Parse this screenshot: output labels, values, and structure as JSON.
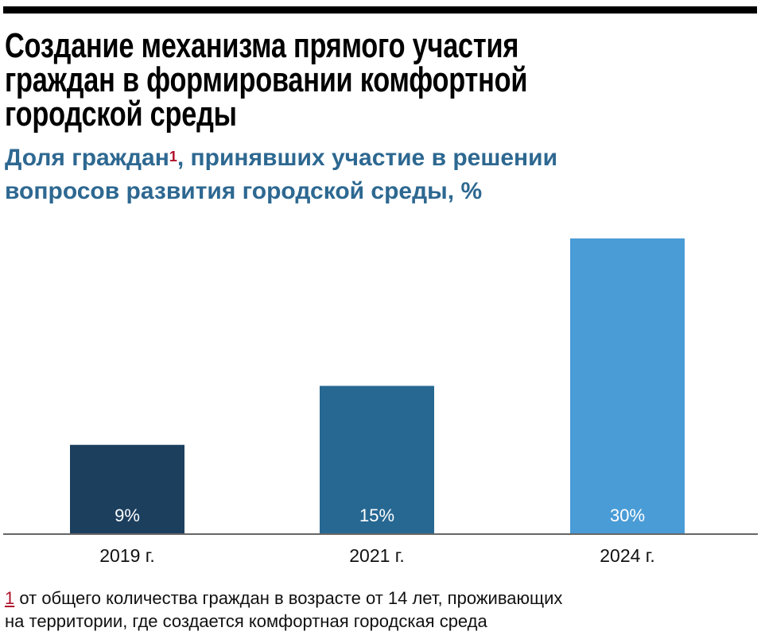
{
  "title_lines": [
    "Создание механизма прямого участия",
    "граждан в формировании комфортной",
    "городской среды"
  ],
  "subtitle": {
    "line1_before": "Доля граждан",
    "footnote_mark": "1",
    "line1_after": ", принявших участие в решении",
    "line2": "вопросов развития городской среды, %"
  },
  "footnote": {
    "mark": "1",
    "line1": "от общего количества граждан в возрасте от 14 лет, проживающих",
    "line2": "на территории, где создается комфортная городская среда"
  },
  "chart_data": {
    "type": "bar",
    "categories": [
      "2019 г.",
      "2021 г.",
      "2024 г."
    ],
    "values": [
      9,
      15,
      30
    ],
    "data_labels": [
      "9%",
      "15%",
      "30%"
    ],
    "colors": [
      "#1c3f5e",
      "#276892",
      "#4a9cd6"
    ],
    "ylim": [
      0,
      30
    ],
    "grid": false,
    "baseline_color": "#666666"
  }
}
